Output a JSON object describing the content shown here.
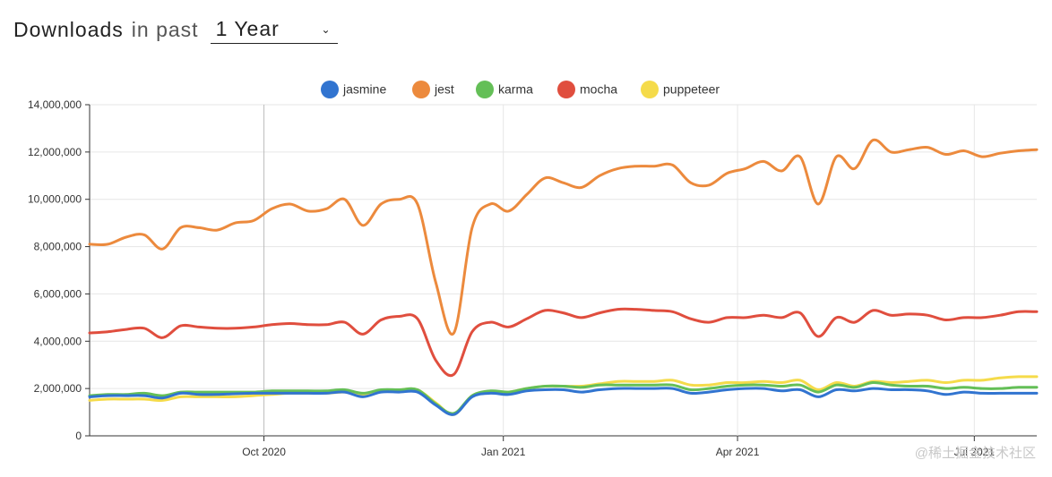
{
  "header": {
    "title": "Downloads",
    "subtitle": "in past",
    "period_selected": "1 Year"
  },
  "watermark": "@稀土掘金技术社区",
  "colors": {
    "jasmine": "#3174d0",
    "jest": "#ec8a3d",
    "karma": "#64bf57",
    "mocha": "#e04e3e",
    "puppeteer": "#f5db4a"
  },
  "chart_data": {
    "type": "line",
    "title": "",
    "xlabel": "",
    "ylabel": "",
    "ylim": [
      0,
      14000000
    ],
    "yticks": [
      0,
      2000000,
      4000000,
      6000000,
      8000000,
      10000000,
      12000000,
      14000000
    ],
    "ytick_labels": [
      "0",
      "2,000,000",
      "4,000,000",
      "6,000,000",
      "8,000,000",
      "10,000,000",
      "12,000,000",
      "14,000,000"
    ],
    "xlim": [
      "2020-07-26",
      "2021-07-25"
    ],
    "xticks": [
      "2020-10-01",
      "2021-01-01",
      "2021-04-01",
      "2021-07-01"
    ],
    "xtick_labels": [
      "Oct 2020",
      "Jan 2021",
      "Apr 2021",
      "Jul 2021"
    ],
    "grid": true,
    "legend_position": "top-center",
    "x": [
      "2020-07-26",
      "2020-08-02",
      "2020-08-09",
      "2020-08-16",
      "2020-08-23",
      "2020-08-30",
      "2020-09-06",
      "2020-09-13",
      "2020-09-20",
      "2020-09-27",
      "2020-10-04",
      "2020-10-11",
      "2020-10-18",
      "2020-10-25",
      "2020-11-01",
      "2020-11-08",
      "2020-11-15",
      "2020-11-22",
      "2020-11-29",
      "2020-12-06",
      "2020-12-13",
      "2020-12-20",
      "2020-12-27",
      "2021-01-03",
      "2021-01-10",
      "2021-01-17",
      "2021-01-24",
      "2021-01-31",
      "2021-02-07",
      "2021-02-14",
      "2021-02-21",
      "2021-02-28",
      "2021-03-07",
      "2021-03-14",
      "2021-03-21",
      "2021-03-28",
      "2021-04-04",
      "2021-04-11",
      "2021-04-18",
      "2021-04-25",
      "2021-05-02",
      "2021-05-09",
      "2021-05-16",
      "2021-05-23",
      "2021-05-30",
      "2021-06-06",
      "2021-06-13",
      "2021-06-20",
      "2021-06-27",
      "2021-07-04",
      "2021-07-11",
      "2021-07-18",
      "2021-07-25"
    ],
    "series": [
      {
        "name": "jasmine",
        "values": [
          1650000,
          1700000,
          1700000,
          1700000,
          1600000,
          1800000,
          1750000,
          1750000,
          1780000,
          1800000,
          1800000,
          1800000,
          1800000,
          1800000,
          1850000,
          1650000,
          1850000,
          1850000,
          1850000,
          1300000,
          900000,
          1650000,
          1800000,
          1750000,
          1900000,
          1950000,
          1950000,
          1850000,
          1950000,
          2000000,
          2000000,
          2000000,
          2000000,
          1800000,
          1850000,
          1950000,
          2000000,
          2000000,
          1900000,
          1950000,
          1650000,
          1950000,
          1900000,
          2000000,
          1950000,
          1950000,
          1900000,
          1750000,
          1850000,
          1800000,
          1800000,
          1800000,
          1800000
        ]
      },
      {
        "name": "jest",
        "values": [
          8100000,
          8100000,
          8400000,
          8500000,
          7900000,
          8800000,
          8800000,
          8700000,
          9000000,
          9100000,
          9600000,
          9800000,
          9500000,
          9600000,
          10000000,
          8900000,
          9800000,
          10000000,
          9800000,
          6500000,
          4350000,
          8800000,
          9800000,
          9500000,
          10200000,
          10900000,
          10700000,
          10500000,
          11000000,
          11300000,
          11400000,
          11400000,
          11450000,
          10700000,
          10600000,
          11100000,
          11300000,
          11600000,
          11200000,
          11800000,
          9800000,
          11800000,
          11300000,
          12500000,
          12000000,
          12100000,
          12200000,
          11900000,
          12050000,
          11800000,
          11950000,
          12050000,
          12100000
        ]
      },
      {
        "name": "karma",
        "values": [
          1700000,
          1750000,
          1750000,
          1800000,
          1700000,
          1850000,
          1850000,
          1850000,
          1850000,
          1850000,
          1900000,
          1900000,
          1900000,
          1900000,
          1950000,
          1800000,
          1950000,
          1950000,
          1950000,
          1350000,
          950000,
          1700000,
          1900000,
          1850000,
          2000000,
          2100000,
          2100000,
          2050000,
          2150000,
          2150000,
          2150000,
          2150000,
          2150000,
          1950000,
          2000000,
          2100000,
          2150000,
          2150000,
          2100000,
          2150000,
          1850000,
          2150000,
          2050000,
          2250000,
          2150000,
          2100000,
          2100000,
          2000000,
          2050000,
          2000000,
          2000000,
          2050000,
          2050000
        ]
      },
      {
        "name": "mocha",
        "values": [
          4350000,
          4400000,
          4500000,
          4550000,
          4150000,
          4650000,
          4600000,
          4550000,
          4550000,
          4600000,
          4700000,
          4750000,
          4700000,
          4700000,
          4800000,
          4300000,
          4900000,
          5050000,
          4950000,
          3200000,
          2600000,
          4400000,
          4800000,
          4600000,
          4950000,
          5300000,
          5200000,
          5000000,
          5200000,
          5350000,
          5350000,
          5300000,
          5250000,
          4950000,
          4800000,
          5000000,
          5000000,
          5100000,
          5000000,
          5200000,
          4200000,
          5000000,
          4800000,
          5300000,
          5100000,
          5150000,
          5100000,
          4900000,
          5000000,
          5000000,
          5100000,
          5250000,
          5250000
        ]
      },
      {
        "name": "puppeteer",
        "values": [
          1500000,
          1550000,
          1550000,
          1550000,
          1500000,
          1650000,
          1650000,
          1650000,
          1650000,
          1700000,
          1750000,
          1800000,
          1800000,
          1800000,
          1850000,
          1750000,
          1900000,
          1950000,
          1950000,
          1400000,
          900000,
          1700000,
          1850000,
          1850000,
          2000000,
          2100000,
          2100000,
          2100000,
          2200000,
          2300000,
          2300000,
          2300000,
          2350000,
          2150000,
          2150000,
          2250000,
          2250000,
          2300000,
          2250000,
          2350000,
          1950000,
          2250000,
          2100000,
          2300000,
          2250000,
          2300000,
          2350000,
          2250000,
          2350000,
          2350000,
          2450000,
          2500000,
          2500000
        ]
      }
    ]
  }
}
